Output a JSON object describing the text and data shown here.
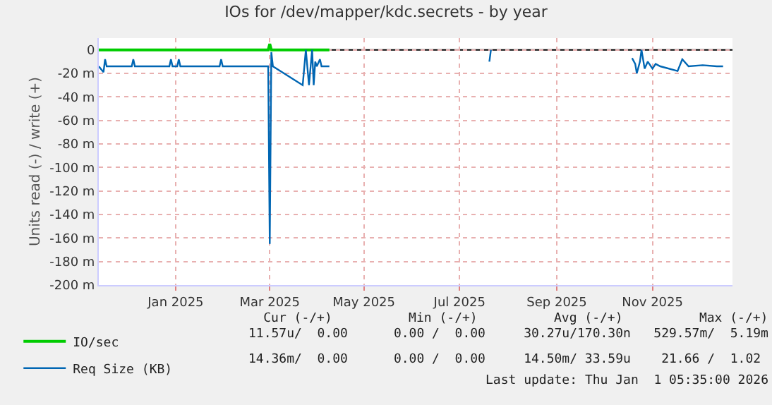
{
  "chart_data": {
    "type": "line",
    "title": "IOs for /dev/mapper/kdc.secrets - by year",
    "ylabel": "Units read (-) / write (+)",
    "xlim": [
      "2024-11-27",
      "2026-01-05"
    ],
    "xticks": [
      {
        "value": "2025-01-15",
        "label": "Jan 2025"
      },
      {
        "value": "2025-03-16",
        "label": "Mar 2025"
      },
      {
        "value": "2025-05-15",
        "label": "May 2025"
      },
      {
        "value": "2025-07-15",
        "label": "Jul 2025"
      },
      {
        "value": "2025-09-15",
        "label": "Sep 2025"
      },
      {
        "value": "2025-11-15",
        "label": "Nov 2025"
      }
    ],
    "ylim": [
      -200,
      10
    ],
    "yticks": [
      0,
      {
        "value": -20,
        "label": "-20 m"
      },
      {
        "value": -40,
        "label": "-40 m"
      },
      {
        "value": -60,
        "label": "-60 m"
      },
      {
        "value": -80,
        "label": "-80 m"
      },
      {
        "value": -100,
        "label": "-100 m"
      },
      {
        "value": -120,
        "label": "-120 m"
      },
      {
        "value": -140,
        "label": "-140 m"
      },
      {
        "value": -160,
        "label": "-160 m"
      },
      {
        "value": -180,
        "label": "-180 m"
      },
      {
        "value": -200,
        "label": "-200 m"
      }
    ],
    "series": [
      {
        "name": "IO/sec",
        "color": "#00cc00",
        "x": [
          "2024-11-27",
          "2025-03-15",
          "2025-03-16",
          "2025-03-17",
          "2025-04-23"
        ],
        "values": [
          0,
          0,
          5,
          0,
          0
        ]
      },
      {
        "name": "Req Size (KB)",
        "color": "#0066b3",
        "x": [
          "2024-11-27",
          "2024-11-30",
          "2024-12-01",
          "2024-12-02",
          "2024-12-18",
          "2024-12-19",
          "2024-12-20",
          "2025-01-11",
          "2025-01-12",
          "2025-01-13",
          "2025-01-16",
          "2025-01-17",
          "2025-01-18",
          "2025-02-12",
          "2025-02-13",
          "2025-02-14",
          "2025-03-15",
          "2025-03-16",
          "2025-03-17",
          "2025-03-18",
          "2025-04-06",
          "2025-04-08",
          "2025-04-10",
          "2025-04-12",
          "2025-04-13",
          "2025-04-14",
          "2025-04-15",
          "2025-04-17",
          "2025-04-18",
          "2025-04-23",
          "2025-04-24",
          "2025-08-03",
          "2025-08-04",
          "2025-08-05",
          "2025-11-02",
          "2025-11-04",
          "2025-11-05",
          "2025-11-07",
          "2025-11-08",
          "2025-11-10",
          "2025-11-12",
          "2025-11-15",
          "2025-11-17",
          "2025-11-20",
          "2025-12-01",
          "2025-12-04",
          "2025-12-08",
          "2025-12-17",
          "2025-12-26",
          "2025-12-30"
        ],
        "values": [
          -14,
          -19,
          -8,
          -14,
          -14,
          -8,
          -14,
          -14,
          -8,
          -14,
          -14,
          -8,
          -14,
          -14,
          -8,
          -14,
          -14,
          -165,
          -2,
          -14,
          -30,
          0,
          -30,
          0,
          -30,
          -10,
          -14,
          -8,
          -14,
          -14,
          null,
          -10,
          0,
          null,
          -7,
          -12,
          -20,
          -10,
          0,
          -16,
          -10,
          -16,
          -12,
          -14,
          -18,
          -8,
          -14,
          -13,
          -14,
          -14
        ]
      }
    ],
    "ref_lines": [
      {
        "axis": "y",
        "value": 0,
        "color": "#000000"
      }
    ],
    "grid": true,
    "legend": "bottom left",
    "annotations": [
      "           Cur (-/+)          Min (-/+)          Avg (-/+)          Max (-/+)",
      "11.57u/  0.00      0.00 /  0.00     30.27u/170.30n   529.57m/  5.19m",
      "14.36m/  0.00      0.00 /  0.00     14.50m/ 33.59u    21.66 /  1.02 ",
      "Last update: Thu Jan  1 05:35:00 2026"
    ]
  }
}
